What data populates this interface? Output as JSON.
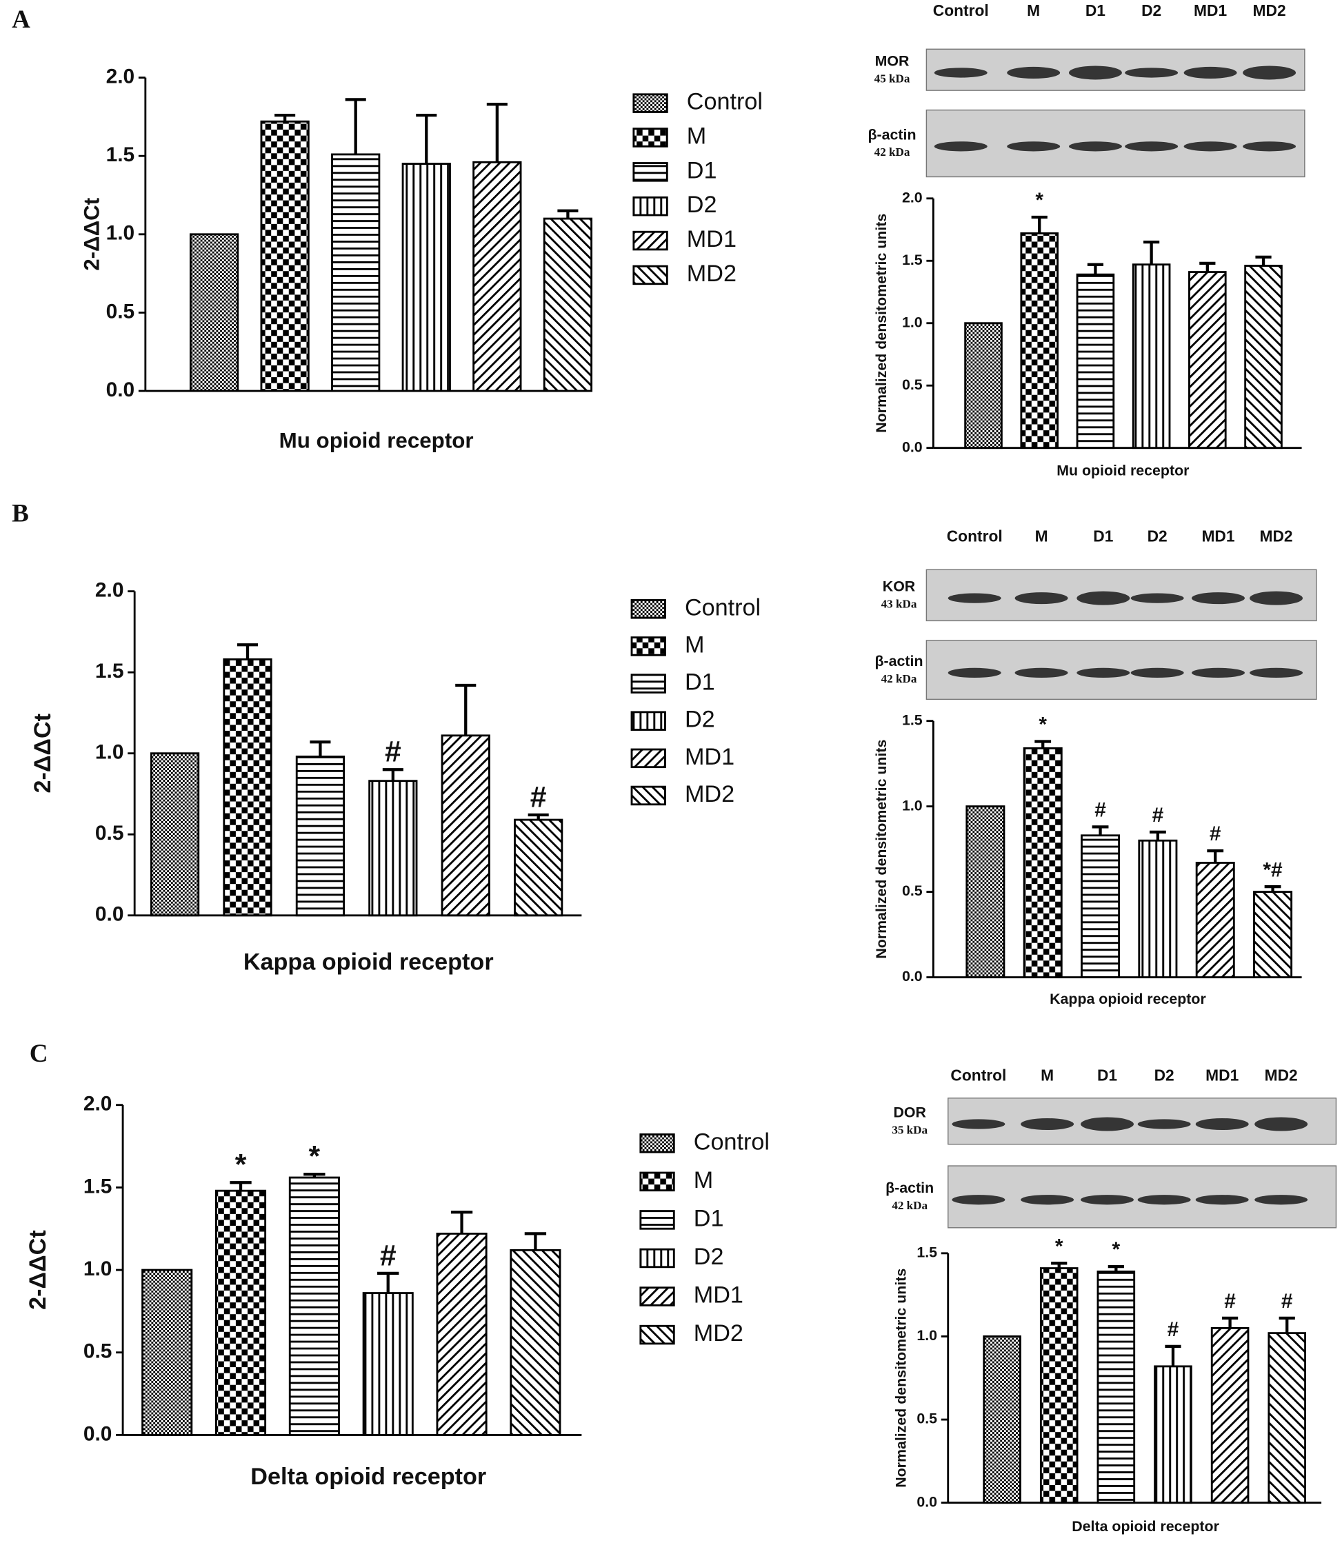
{
  "panels": [
    {
      "label": "A",
      "blot": {
        "lanes": [
          "Control",
          "M",
          "D1",
          "D2",
          "MD1",
          "MD2"
        ],
        "rows": [
          {
            "protein": "MOR",
            "size": "45 kDa"
          },
          {
            "protein": "β-actin",
            "size": "42 kDa"
          }
        ]
      }
    },
    {
      "label": "B",
      "blot": {
        "lanes": [
          "Control",
          "M",
          "D1",
          "D2",
          "MD1",
          "MD2"
        ],
        "rows": [
          {
            "protein": "KOR",
            "size": "43 kDa"
          },
          {
            "protein": "β-actin",
            "size": "42 kDa"
          }
        ]
      }
    },
    {
      "label": "C",
      "blot": {
        "lanes": [
          "Control",
          "M",
          "D1",
          "D2",
          "MD1",
          "MD2"
        ],
        "rows": [
          {
            "protein": "DOR",
            "size": "35 kDa"
          },
          {
            "protein": "β-actin",
            "size": "42 kDa"
          }
        ]
      }
    }
  ],
  "chart_data": [
    {
      "type": "bar",
      "y_label": "2-ΔΔCt",
      "x_label": "Mu opioid receptor",
      "categories": [
        "Control",
        "M",
        "D1",
        "D2",
        "MD1",
        "MD2"
      ],
      "values": [
        1.0,
        1.72,
        1.51,
        1.45,
        1.46,
        1.1
      ],
      "errors": [
        null,
        0.04,
        0.35,
        0.31,
        0.37,
        0.05
      ],
      "annotations": [
        null,
        null,
        null,
        null,
        null,
        null
      ],
      "ylim": [
        0,
        2
      ],
      "yticks": [
        {
          "value": 0,
          "label": "0.0"
        },
        0.5,
        {
          "value": 1,
          "label": "1.0"
        },
        1.5,
        {
          "value": 2,
          "label": "2.0"
        }
      ],
      "legend": true
    },
    {
      "type": "bar",
      "y_label": "Normalized densitometric units",
      "x_label": "Mu opioid receptor",
      "categories": [
        "Control",
        "M",
        "D1",
        "D2",
        "MD1",
        "MD2"
      ],
      "values": [
        1.0,
        1.72,
        1.39,
        1.47,
        1.41,
        1.46
      ],
      "errors": [
        null,
        0.13,
        0.08,
        0.18,
        0.07,
        0.07
      ],
      "annotations": [
        null,
        "*",
        null,
        null,
        null,
        null
      ],
      "ylim": [
        0,
        2
      ],
      "yticks": [
        {
          "value": 0,
          "label": "0.0"
        },
        0.5,
        {
          "value": 1,
          "label": "1.0"
        },
        1.5,
        {
          "value": 2,
          "label": "2.0"
        }
      ],
      "legend": false
    },
    {
      "type": "bar",
      "y_label": "2-ΔΔCt",
      "x_label": "Kappa opioid receptor",
      "categories": [
        "Control",
        "M",
        "D1",
        "D2",
        "MD1",
        "MD2"
      ],
      "values": [
        1.0,
        1.58,
        0.98,
        0.83,
        1.11,
        0.59
      ],
      "errors": [
        null,
        0.09,
        0.09,
        0.07,
        0.31,
        0.03
      ],
      "annotations": [
        null,
        null,
        null,
        "#",
        null,
        "#"
      ],
      "ylim": [
        0,
        2
      ],
      "yticks": [
        {
          "value": 0,
          "label": "0.0"
        },
        0.5,
        {
          "value": 1,
          "label": "1.0"
        },
        1.5,
        {
          "value": 2,
          "label": "2.0"
        }
      ],
      "legend": true
    },
    {
      "type": "bar",
      "y_label": "Normalized densitometric units",
      "x_label": "Kappa opioid receptor",
      "categories": [
        "Control",
        "M",
        "D1",
        "D2",
        "MD1",
        "MD2"
      ],
      "values": [
        1.0,
        1.34,
        0.83,
        0.8,
        0.67,
        0.5
      ],
      "errors": [
        null,
        0.04,
        0.05,
        0.05,
        0.07,
        0.03
      ],
      "annotations": [
        null,
        "*",
        "#",
        "#",
        "#",
        "*#"
      ],
      "ylim": [
        0,
        1.5
      ],
      "yticks": [
        {
          "value": 0,
          "label": "0.0"
        },
        0.5,
        {
          "value": 1,
          "label": "1.0"
        },
        1.5
      ],
      "legend": false
    },
    {
      "type": "bar",
      "y_label": "2-ΔΔCt",
      "x_label": "Delta opioid receptor",
      "categories": [
        "Control",
        "M",
        "D1",
        "D2",
        "MD1",
        "MD2"
      ],
      "values": [
        1.0,
        1.48,
        1.56,
        0.86,
        1.22,
        1.12
      ],
      "errors": [
        null,
        0.05,
        0.02,
        0.12,
        0.13,
        0.1
      ],
      "annotations": [
        null,
        "*",
        "*",
        "#",
        null,
        null
      ],
      "ylim": [
        0,
        2
      ],
      "yticks": [
        {
          "value": 0,
          "label": "0.0"
        },
        0.5,
        {
          "value": 1,
          "label": "1.0"
        },
        1.5,
        {
          "value": 2,
          "label": "2.0"
        }
      ],
      "legend": true
    },
    {
      "type": "bar",
      "y_label": "Normalized densitometric units",
      "x_label": "Delta opioid receptor",
      "categories": [
        "Control",
        "M",
        "D1",
        "D2",
        "MD1",
        "MD2"
      ],
      "values": [
        1.0,
        1.41,
        1.39,
        0.82,
        1.05,
        1.02
      ],
      "errors": [
        null,
        0.03,
        0.03,
        0.12,
        0.06,
        0.09
      ],
      "annotations": [
        null,
        "*",
        "*",
        "#",
        "#",
        "#"
      ],
      "ylim": [
        0,
        1.5
      ],
      "yticks": [
        {
          "value": 0,
          "label": "0.0"
        },
        0.5,
        {
          "value": 1,
          "label": "1.0"
        },
        1.5
      ],
      "legend": false
    }
  ]
}
